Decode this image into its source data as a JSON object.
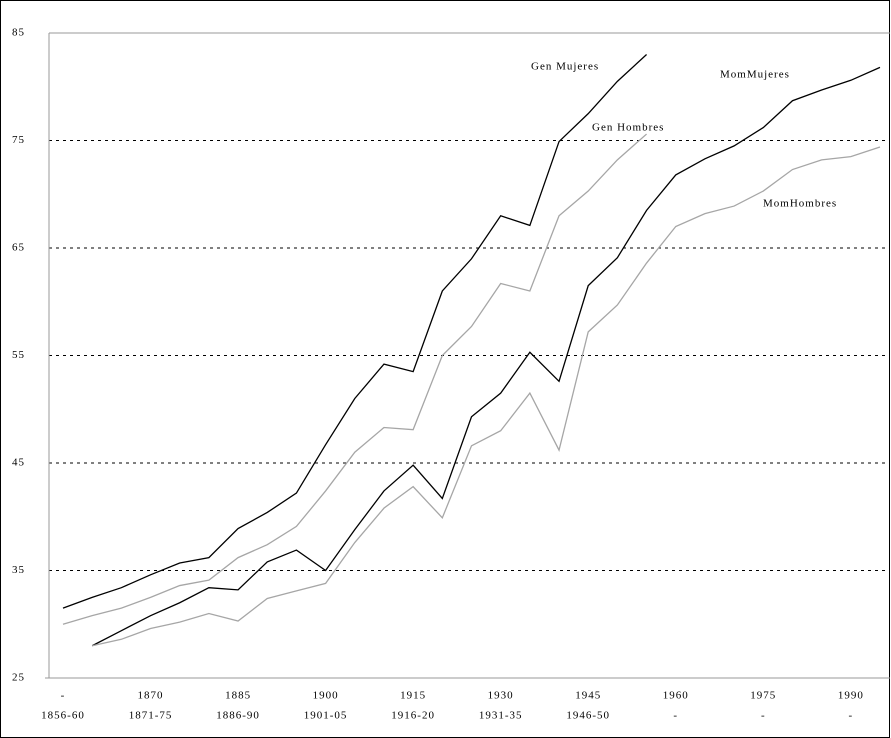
{
  "chart_data": {
    "type": "line",
    "categories": [
      "-",
      null,
      null,
      "1870",
      null,
      null,
      "1885",
      null,
      null,
      "1900",
      null,
      null,
      "1915",
      null,
      null,
      "1930",
      null,
      null,
      "1945",
      null,
      null,
      "1960",
      null,
      null,
      "1975",
      null,
      null,
      "1990",
      null
    ],
    "category_periods": [
      "1856-60",
      null,
      null,
      "1871-75",
      null,
      null,
      "1886-90",
      null,
      null,
      "1901-05",
      null,
      null,
      "1916-20",
      null,
      null,
      "1931-35",
      null,
      null,
      "1946-50",
      null,
      null,
      "-",
      null,
      null,
      "-",
      null,
      null,
      "-",
      null
    ],
    "series": [
      {
        "name": "Gen Mujeres",
        "color": "#000000",
        "values": [
          31.5,
          32.5,
          33.4,
          34.6,
          35.7,
          36.2,
          38.9,
          40.4,
          42.2,
          46.7,
          51.0,
          54.2,
          53.5,
          61.0,
          64.0,
          68.0,
          67.1,
          74.9,
          77.5,
          80.5,
          83.0,
          null,
          null,
          null,
          null,
          null,
          null,
          null,
          null
        ]
      },
      {
        "name": "Gen Hombres",
        "color": "#a6a6a6",
        "values": [
          30.0,
          30.8,
          31.5,
          32.5,
          33.6,
          34.1,
          36.2,
          37.4,
          39.1,
          42.4,
          46.0,
          48.3,
          48.1,
          55.0,
          57.7,
          61.7,
          61.0,
          68.0,
          70.3,
          73.2,
          75.6,
          null,
          null,
          null,
          null,
          null,
          null,
          null,
          null
        ]
      },
      {
        "name": "MomMujeres",
        "color": "#000000",
        "values": [
          null,
          28.0,
          29.4,
          30.8,
          32.0,
          33.4,
          33.2,
          35.8,
          36.9,
          35.0,
          38.8,
          42.4,
          44.8,
          41.7,
          49.3,
          51.5,
          55.3,
          52.6,
          61.5,
          64.1,
          68.5,
          71.8,
          73.3,
          74.5,
          76.2,
          78.7,
          79.7,
          80.6,
          81.8
        ]
      },
      {
        "name": "MomHombres",
        "color": "#a6a6a6",
        "values": [
          null,
          28.0,
          28.6,
          29.6,
          30.2,
          31.0,
          30.3,
          32.4,
          33.1,
          33.8,
          37.6,
          40.8,
          42.8,
          39.9,
          46.6,
          48.0,
          51.5,
          46.2,
          57.2,
          59.7,
          63.6,
          67.0,
          68.2,
          68.9,
          70.3,
          72.3,
          73.2,
          73.5,
          74.4
        ]
      }
    ],
    "ylim": [
      25,
      85
    ],
    "yticks": [
      25,
      35,
      45,
      55,
      65,
      75,
      85
    ],
    "grid": true
  }
}
